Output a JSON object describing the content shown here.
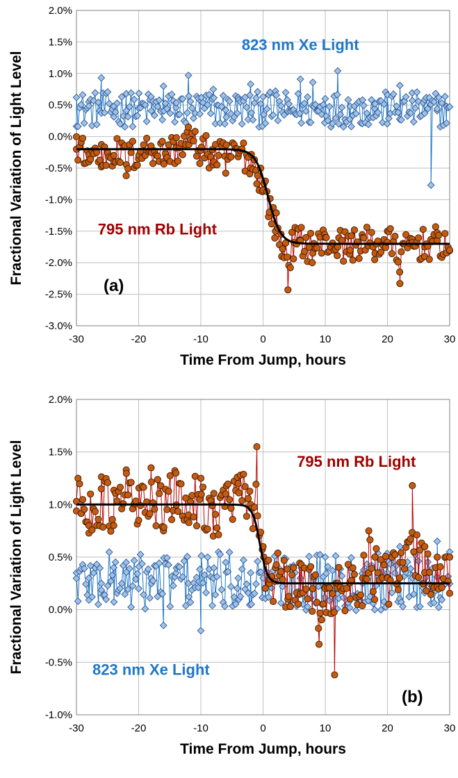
{
  "chart_data": [
    {
      "type": "scatter",
      "panel_label": "(a)",
      "xlabel": "Time From Jump, hours",
      "ylabel": "Fractional Variation of Light Level",
      "xlim": [
        -30,
        30
      ],
      "ylim": [
        -0.03,
        0.02
      ],
      "xticks": [
        -30,
        -20,
        -10,
        0,
        10,
        20,
        30
      ],
      "xtick_labels": [
        "-30",
        "-20",
        "-10",
        "0",
        "10",
        "20",
        "30"
      ],
      "yticks": [
        -0.03,
        -0.025,
        -0.02,
        -0.015,
        -0.01,
        -0.005,
        0,
        0.005,
        0.01,
        0.015,
        0.02
      ],
      "ytick_labels": [
        "-3.0%",
        "-2.5%",
        "-2.0%",
        "-1.5%",
        "-1.0%",
        "-0.5%",
        "0.0%",
        "0.5%",
        "1.0%",
        "1.5%",
        "2.0%"
      ],
      "grid": true,
      "colors": {
        "xe": "#1f77c8",
        "xe_fill": "#9dc3e6",
        "rb": "#c00000",
        "rb_fill": "#c55a11",
        "fit": "#000000"
      },
      "labels": [
        {
          "text": "823 nm Xe Light",
          "series": "xe",
          "x": 6,
          "y": 0.0137
        },
        {
          "text": "795 nm Rb Light",
          "series": "rb",
          "x": -17,
          "y": -0.0155
        }
      ],
      "fit": {
        "type": "step",
        "before": -0.002,
        "after": -0.017,
        "center": 0.8,
        "width": 1.0
      },
      "series": [
        {
          "key": "xe",
          "marker": "diamond",
          "x": [
            -30,
            -28,
            -26,
            -24,
            -22,
            -20,
            -18,
            -16,
            -14,
            -12,
            -10,
            -8,
            -6,
            -4,
            -2,
            0,
            2,
            4,
            6,
            8,
            10,
            12,
            14,
            16,
            18,
            20,
            22,
            24,
            26,
            27,
            28,
            29.5
          ],
          "y": [
            0.0062,
            0.0055,
            0.0093,
            0.0048,
            0.0068,
            0.0045,
            0.0063,
            0.008,
            0.0046,
            0.0097,
            0.0056,
            0.0075,
            0.0042,
            0.0062,
            0.0083,
            0.0063,
            0.0072,
            0.004,
            0.0091,
            0.0086,
            0.006,
            0.0104,
            0.0048,
            0.0058,
            0.0052,
            0.0066,
            0.0081,
            0.0057,
            0.0058,
            -0.0077,
            0.0044,
            0.0048
          ]
        },
        {
          "key": "rb",
          "marker": "circle",
          "x": [
            -30,
            -28,
            -26,
            -24,
            -22,
            -20,
            -18,
            -16,
            -14,
            -12,
            -10,
            -8,
            -6,
            -4,
            -2,
            -1,
            0,
            1,
            2,
            3,
            4,
            5,
            6,
            8,
            10,
            12,
            14,
            16,
            18,
            20,
            22,
            24,
            26,
            28,
            30
          ],
          "y": [
            -0.002,
            -0.004,
            -0.0048,
            -0.003,
            -0.0062,
            -0.0035,
            -0.0015,
            -0.004,
            -0.0018,
            0.0015,
            -0.0022,
            -0.0045,
            -0.0058,
            -0.0032,
            -0.005,
            -0.0075,
            -0.0085,
            -0.012,
            -0.015,
            -0.019,
            -0.0243,
            -0.0168,
            -0.0165,
            -0.0185,
            -0.016,
            -0.0175,
            -0.018,
            -0.016,
            -0.0185,
            -0.015,
            -0.0233,
            -0.0168,
            -0.0175,
            -0.0165,
            -0.018
          ]
        }
      ]
    },
    {
      "type": "scatter",
      "panel_label": "(b)",
      "xlabel": "Time From Jump, hours",
      "ylabel": "Fractional Variation of Light Level",
      "xlim": [
        -30,
        30
      ],
      "ylim": [
        -0.01,
        0.02
      ],
      "xticks": [
        -30,
        -20,
        -10,
        0,
        10,
        20,
        30
      ],
      "xtick_labels": [
        "-30",
        "-20",
        "-10",
        "0",
        "10",
        "20",
        "30"
      ],
      "yticks": [
        -0.01,
        -0.005,
        0,
        0.005,
        0.01,
        0.015,
        0.02
      ],
      "ytick_labels": [
        "-1.0%",
        "-0.5%",
        "0.0%",
        "0.5%",
        "1.0%",
        "1.5%",
        "2.0%"
      ],
      "grid": true,
      "colors": {
        "xe": "#1f77c8",
        "xe_fill": "#9dc3e6",
        "rb": "#c00000",
        "rb_fill": "#c55a11",
        "fit": "#000000"
      },
      "labels": [
        {
          "text": "795 nm Rb Light",
          "series": "rb",
          "x": 15,
          "y": 0.0136
        },
        {
          "text": "823 nm Xe Light",
          "series": "xe",
          "x": -18,
          "y": -0.0062
        }
      ],
      "fit": {
        "type": "step",
        "before": 0.01,
        "after": 0.0025,
        "center": -0.5,
        "width": 0.6
      },
      "series": [
        {
          "key": "xe",
          "marker": "diamond",
          "x": [
            -30,
            -28,
            -26,
            -24,
            -22,
            -20,
            -18,
            -16,
            -14,
            -12,
            -10,
            -8,
            -6,
            -4,
            -2,
            0,
            2,
            4,
            6,
            8,
            10,
            12,
            14,
            16,
            18,
            20,
            22,
            24,
            26,
            28,
            30
          ],
          "y": [
            0.0035,
            0.003,
            0.0025,
            0.004,
            0.0045,
            0.002,
            0.003,
            -0.0015,
            0.0035,
            0.0025,
            -0.002,
            0.003,
            0.0045,
            0.003,
            0.0035,
            0.003,
            0.004,
            0.001,
            0.003,
            0.002,
            0.005,
            0.0015,
            0.004,
            0.0025,
            0.005,
            0.0035,
            0.006,
            0.003,
            0.0025,
            0.0065,
            0.0055
          ]
        },
        {
          "key": "rb",
          "marker": "circle",
          "x": [
            -30,
            -28,
            -26,
            -24,
            -22,
            -20,
            -18,
            -16,
            -14,
            -12,
            -10,
            -8,
            -6,
            -4,
            -2,
            -1,
            0,
            1,
            2,
            4,
            6,
            8,
            9,
            10,
            11.5,
            12,
            14,
            16,
            17,
            18,
            20,
            22,
            24,
            26,
            28,
            30
          ],
          "y": [
            0.0103,
            0.008,
            0.0115,
            0.008,
            0.0133,
            0.0085,
            0.0135,
            0.0075,
            0.013,
            0.009,
            0.0125,
            0.007,
            0.011,
            0.012,
            0.01,
            0.0155,
            0.006,
            0.0025,
            0.004,
            0.001,
            0.0015,
            0.002,
            -0.0033,
            0.002,
            -0.0062,
            0.0025,
            0.001,
            0.003,
            0.0075,
            0.005,
            0.003,
            0.0045,
            0.0118,
            0.006,
            0.005,
            0.005
          ]
        }
      ]
    }
  ]
}
